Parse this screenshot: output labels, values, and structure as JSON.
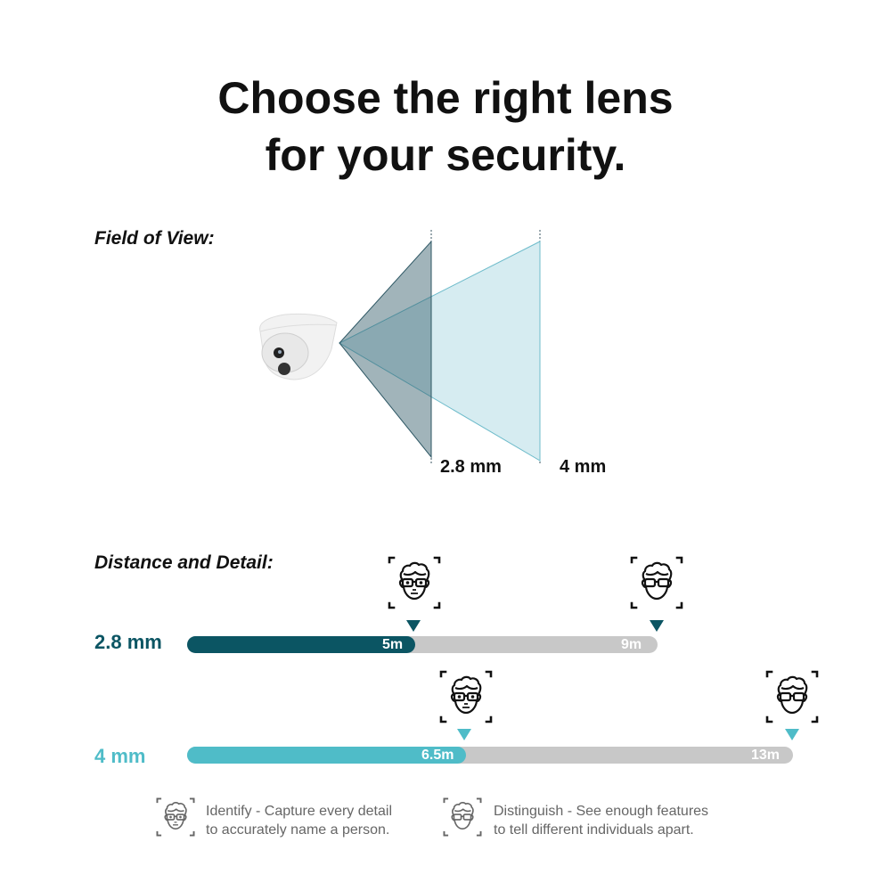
{
  "title_line1": "Choose the right lens",
  "title_line2": "for your security.",
  "fov": {
    "label": "Field of View:",
    "lens_a": "2.8 mm",
    "lens_b": "4 mm"
  },
  "distance": {
    "label": "Distance and Detail:",
    "rows": [
      {
        "lens": "2.8 mm",
        "identify": "5m",
        "distinguish": "9m",
        "identify_m": 5,
        "distinguish_m": 9,
        "color": "#0b5563"
      },
      {
        "lens": "4 mm",
        "identify": "6.5m",
        "distinguish": "13m",
        "identify_m": 6.5,
        "distinguish_m": 13,
        "color": "#4fbcc8"
      }
    ]
  },
  "legend": {
    "identify_1": "Identify - Capture every detail",
    "identify_2": "to accurately name a person.",
    "distinguish_1": "Distinguish - See enough features",
    "distinguish_2": "to tell different individuals apart."
  },
  "colors": {
    "dark": "#0b5563",
    "teal": "#4fbcc8",
    "track": "#c8c8c8"
  },
  "icons": [
    "dome-camera",
    "identify-face-icon",
    "distinguish-face-icon"
  ]
}
